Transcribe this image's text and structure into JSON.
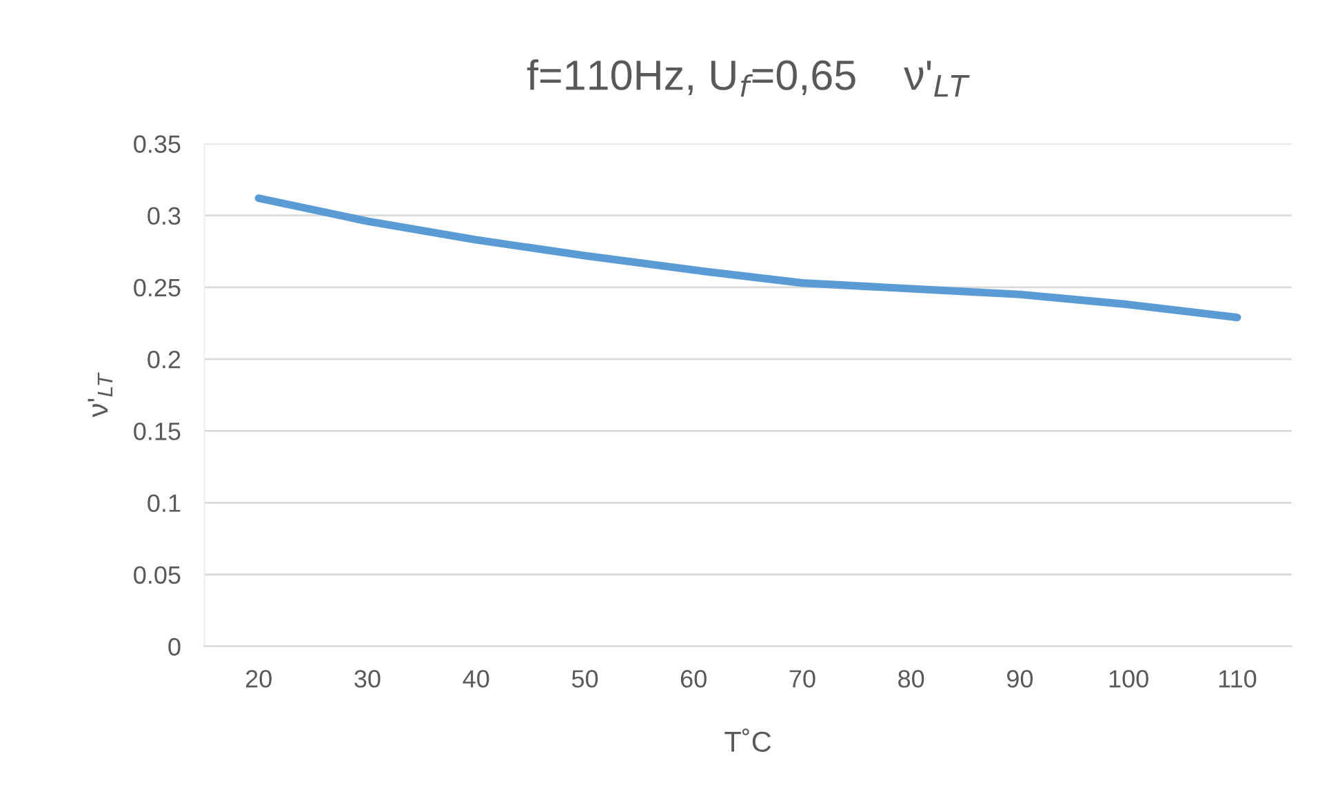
{
  "chart_data": {
    "type": "line",
    "title": "f=110Hz, U$_{f}$=0,65    ν'$_{LT}$",
    "xlabel": "T˚C",
    "ylabel": "ν'$_{LT}$",
    "categories": [
      "20",
      "30",
      "40",
      "50",
      "60",
      "70",
      "80",
      "90",
      "100",
      "110"
    ],
    "series": [
      {
        "color": "#5b9bd5",
        "values": [
          0.312,
          0.296,
          0.283,
          0.272,
          0.262,
          0.253,
          0.249,
          0.245,
          0.238,
          0.229
        ]
      }
    ],
    "ylim": [
      0,
      0.35
    ],
    "yticks": [
      {
        "value": 0,
        "label": "0"
      },
      0.05,
      {
        "value": 0.1,
        "label": "0.1"
      },
      0.15,
      {
        "value": 0.2,
        "label": "0.2"
      },
      0.25,
      {
        "value": 0.3,
        "label": "0.3"
      },
      0.35
    ],
    "grid": "y",
    "marker": "none",
    "line_style": "solid"
  }
}
